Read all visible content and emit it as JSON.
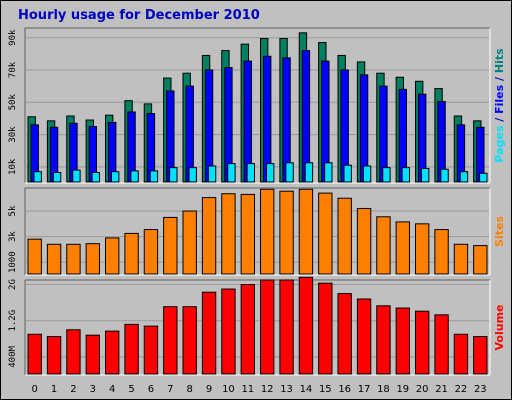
{
  "chart_data": [
    {
      "type": "bar",
      "title": "Hourly usage for December 2010",
      "categories": [
        "0",
        "1",
        "2",
        "3",
        "4",
        "5",
        "6",
        "7",
        "8",
        "9",
        "10",
        "11",
        "12",
        "13",
        "14",
        "15",
        "16",
        "17",
        "18",
        "19",
        "20",
        "21",
        "22",
        "23"
      ],
      "ylim": [
        0,
        96000
      ],
      "yticks": [
        {
          "value": 10000,
          "label": "10k"
        },
        {
          "value": 30000,
          "label": "30k"
        },
        {
          "value": 50000,
          "label": "50k"
        },
        {
          "value": 70000,
          "label": "70k"
        },
        {
          "value": 90000,
          "label": "90k"
        }
      ],
      "side_label": [
        {
          "text": "Pages",
          "color": "#00e0ff"
        },
        {
          "text": " / ",
          "color": "#0000c0"
        },
        {
          "text": "Files",
          "color": "#0000ff"
        },
        {
          "text": " / ",
          "color": "#0000c0"
        },
        {
          "text": "Hits",
          "color": "#008080"
        }
      ],
      "series": [
        {
          "name": "Hits",
          "color": "#008060",
          "values": [
            41000,
            38500,
            41500,
            39000,
            42000,
            51000,
            49000,
            65000,
            68000,
            79000,
            82000,
            86000,
            89500,
            89500,
            93000,
            87000,
            79000,
            75000,
            68000,
            65500,
            63000,
            58500,
            41500,
            38500
          ]
        },
        {
          "name": "Files",
          "color": "#0000ff",
          "values": [
            36000,
            34500,
            37000,
            35000,
            37500,
            44000,
            43000,
            57000,
            60000,
            70000,
            71500,
            75500,
            78500,
            77500,
            82000,
            75500,
            70000,
            67000,
            60000,
            58000,
            55000,
            50500,
            36000,
            34500
          ]
        },
        {
          "name": "Pages",
          "color": "#00e0ff",
          "values": [
            7000,
            6500,
            8000,
            6500,
            7000,
            7500,
            7500,
            9500,
            9500,
            10500,
            12000,
            12000,
            12000,
            12500,
            12500,
            12500,
            11000,
            10500,
            9500,
            9500,
            9000,
            8500,
            7000,
            6000
          ]
        }
      ]
    },
    {
      "type": "bar",
      "categories": [
        "0",
        "1",
        "2",
        "3",
        "4",
        "5",
        "6",
        "7",
        "8",
        "9",
        "10",
        "11",
        "12",
        "13",
        "14",
        "15",
        "16",
        "17",
        "18",
        "19",
        "20",
        "21",
        "22",
        "23"
      ],
      "ylim": [
        0,
        6800
      ],
      "yticks": [
        {
          "value": 1000,
          "label": "1000"
        },
        {
          "value": 3000,
          "label": "3k"
        },
        {
          "value": 5000,
          "label": "5k"
        }
      ],
      "side_label": [
        {
          "text": "Sites",
          "color": "#ff8000"
        }
      ],
      "series": [
        {
          "name": "Sites",
          "color": "#ff8000",
          "values": [
            2800,
            2400,
            2400,
            2450,
            2900,
            3250,
            3550,
            4500,
            5000,
            6050,
            6350,
            6300,
            6700,
            6550,
            6700,
            6400,
            6000,
            5200,
            4550,
            4150,
            4000,
            3550,
            2400,
            2300
          ]
        }
      ]
    },
    {
      "type": "bar",
      "categories": [
        "0",
        "1",
        "2",
        "3",
        "4",
        "5",
        "6",
        "7",
        "8",
        "9",
        "10",
        "11",
        "12",
        "13",
        "14",
        "15",
        "16",
        "17",
        "18",
        "19",
        "20",
        "21",
        "22",
        "23"
      ],
      "ylim": [
        0,
        2.1
      ],
      "yticks": [
        {
          "value": 0.4,
          "label": "400M"
        },
        {
          "value": 1.2,
          "label": "1.2G"
        },
        {
          "value": 2.0,
          "label": "2G"
        }
      ],
      "side_label": [
        {
          "text": "Volume",
          "color": "#ff0000"
        }
      ],
      "series": [
        {
          "name": "Volume",
          "color": "#ff0000",
          "values": [
            0.9,
            0.85,
            1.0,
            0.88,
            0.97,
            1.12,
            1.08,
            1.51,
            1.51,
            1.83,
            1.9,
            2.0,
            2.1,
            2.1,
            2.16,
            2.03,
            1.8,
            1.68,
            1.53,
            1.48,
            1.41,
            1.33,
            0.9,
            0.85
          ]
        }
      ]
    }
  ]
}
